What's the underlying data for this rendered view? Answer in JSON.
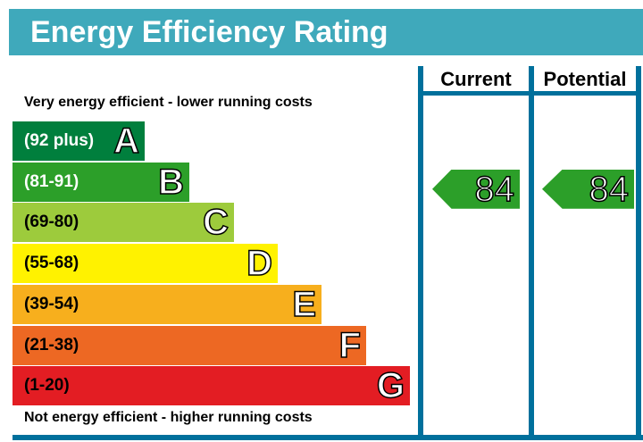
{
  "title": "Energy Efficiency Rating",
  "columns": {
    "current": "Current",
    "potential": "Potential"
  },
  "top_caption": "Very energy efficient - lower running costs",
  "bottom_caption": "Not energy efficient - higher running costs",
  "border_color": "#00709c",
  "chart_data": {
    "type": "bar",
    "bands": [
      {
        "range": "(92 plus)",
        "letter": "A",
        "color": "#007f3d"
      },
      {
        "range": "(81-91)",
        "letter": "B",
        "color": "#2c9f29"
      },
      {
        "range": "(69-80)",
        "letter": "C",
        "color": "#9dcb3c"
      },
      {
        "range": "(55-68)",
        "letter": "D",
        "color": "#fff200"
      },
      {
        "range": "(39-54)",
        "letter": "E",
        "color": "#f7af1d"
      },
      {
        "range": "(21-38)",
        "letter": "F",
        "color": "#ed6823"
      },
      {
        "range": "(1-20)",
        "letter": "G",
        "color": "#e31d23"
      }
    ],
    "current": {
      "value": "84",
      "band": "B"
    },
    "potential": {
      "value": "84",
      "band": "B"
    }
  }
}
